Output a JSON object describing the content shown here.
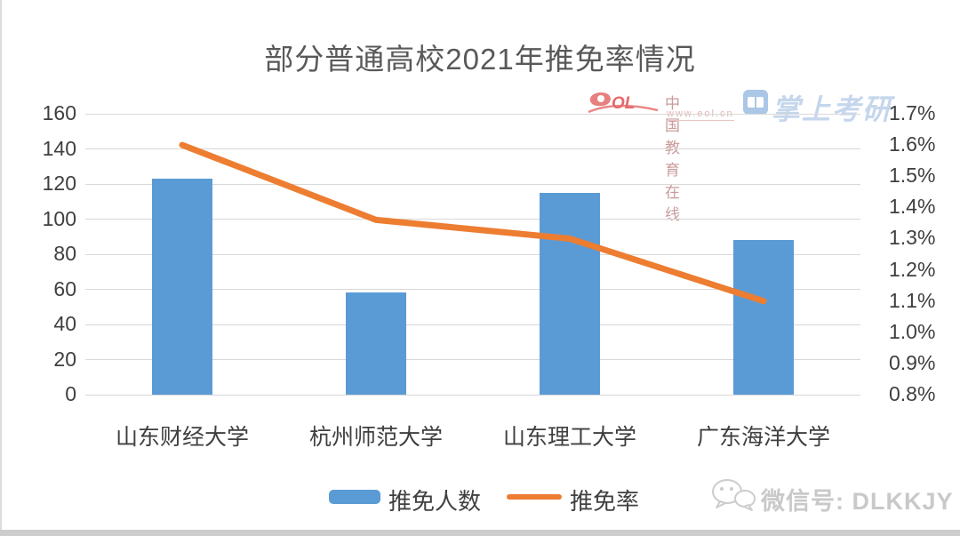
{
  "page": {
    "title": "部分普通高校2021年推免率情况"
  },
  "watermarks": {
    "eol": {
      "logo_text": "eol",
      "name": "中国教育在线",
      "url": "www.eol.cn"
    },
    "zsky": {
      "name": "掌上考研"
    },
    "wechat": {
      "label": "微信号: DLKKJY"
    }
  },
  "chart_data": {
    "type": "combo",
    "title": "部分普通高校2021年推免率情况",
    "categories": [
      "山东财经大学",
      "杭州师范大学",
      "山东理工大学",
      "广东海洋大学"
    ],
    "series": [
      {
        "name": "推免人数",
        "type": "bar",
        "axis": "left",
        "color": "#5b9bd5",
        "values": [
          123,
          58,
          115,
          88
        ]
      },
      {
        "name": "推免率",
        "type": "line",
        "axis": "right",
        "color": "#ed7d31",
        "unit": "%",
        "values": [
          1.6,
          1.36,
          1.3,
          1.1
        ]
      }
    ],
    "left_axis": {
      "min": 0,
      "max": 160,
      "step": 20
    },
    "right_axis": {
      "min": 0.8,
      "max": 1.7,
      "step": 0.1,
      "format": "percent"
    },
    "grid": true,
    "legend_position": "bottom"
  }
}
